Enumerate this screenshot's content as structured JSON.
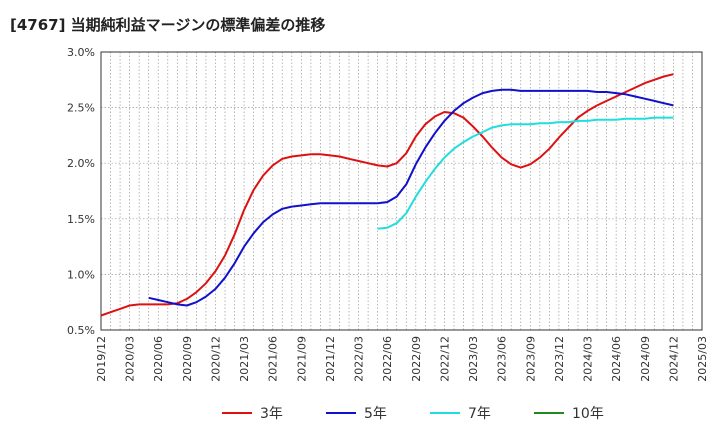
{
  "chart_data": {
    "type": "line",
    "title": "[4767]  当期純利益マージンの標準偏差の推移",
    "xlabel": "",
    "ylabel": "",
    "ylim": [
      0.5,
      3.0
    ],
    "yticks": [
      0.5,
      1.0,
      1.5,
      2.0,
      2.5,
      3.0
    ],
    "ytick_labels": [
      "0.5%",
      "1.0%",
      "1.5%",
      "2.0%",
      "2.5%",
      "3.0%"
    ],
    "xticks": [
      "2019/12",
      "2020/03",
      "2020/06",
      "2020/09",
      "2020/12",
      "2021/03",
      "2021/06",
      "2021/09",
      "2021/12",
      "2022/03",
      "2022/06",
      "2022/09",
      "2022/12",
      "2023/03",
      "2023/06",
      "2023/09",
      "2023/12",
      "2024/03",
      "2024/06",
      "2024/09",
      "2024/12",
      "2025/03"
    ],
    "grid": true,
    "legend_position": "bottom",
    "series": [
      {
        "name": "3年",
        "color": "#dd1111",
        "points": [
          [
            "2019/12",
            0.63
          ],
          [
            "2020/01",
            0.66
          ],
          [
            "2020/02",
            0.69
          ],
          [
            "2020/03",
            0.72
          ],
          [
            "2020/04",
            0.73
          ],
          [
            "2020/05",
            0.73
          ],
          [
            "2020/06",
            0.73
          ],
          [
            "2020/07",
            0.73
          ],
          [
            "2020/08",
            0.74
          ],
          [
            "2020/09",
            0.78
          ],
          [
            "2020/10",
            0.84
          ],
          [
            "2020/11",
            0.92
          ],
          [
            "2020/12",
            1.03
          ],
          [
            "2021/01",
            1.17
          ],
          [
            "2021/02",
            1.36
          ],
          [
            "2021/03",
            1.58
          ],
          [
            "2021/04",
            1.76
          ],
          [
            "2021/05",
            1.89
          ],
          [
            "2021/06",
            1.98
          ],
          [
            "2021/07",
            2.04
          ],
          [
            "2021/08",
            2.06
          ],
          [
            "2021/09",
            2.07
          ],
          [
            "2021/10",
            2.08
          ],
          [
            "2021/11",
            2.08
          ],
          [
            "2021/12",
            2.07
          ],
          [
            "2022/01",
            2.06
          ],
          [
            "2022/02",
            2.04
          ],
          [
            "2022/03",
            2.02
          ],
          [
            "2022/04",
            2.0
          ],
          [
            "2022/05",
            1.98
          ],
          [
            "2022/06",
            1.97
          ],
          [
            "2022/07",
            2.0
          ],
          [
            "2022/08",
            2.09
          ],
          [
            "2022/09",
            2.24
          ],
          [
            "2022/10",
            2.35
          ],
          [
            "2022/11",
            2.42
          ],
          [
            "2022/12",
            2.46
          ],
          [
            "2023/01",
            2.45
          ],
          [
            "2023/02",
            2.41
          ],
          [
            "2023/03",
            2.33
          ],
          [
            "2023/04",
            2.24
          ],
          [
            "2023/05",
            2.14
          ],
          [
            "2023/06",
            2.05
          ],
          [
            "2023/07",
            1.99
          ],
          [
            "2023/08",
            1.96
          ],
          [
            "2023/09",
            1.99
          ],
          [
            "2023/10",
            2.05
          ],
          [
            "2023/11",
            2.13
          ],
          [
            "2023/12",
            2.23
          ],
          [
            "2024/01",
            2.32
          ],
          [
            "2024/02",
            2.41
          ],
          [
            "2024/03",
            2.47
          ],
          [
            "2024/04",
            2.52
          ],
          [
            "2024/05",
            2.56
          ],
          [
            "2024/06",
            2.6
          ],
          [
            "2024/07",
            2.64
          ],
          [
            "2024/08",
            2.68
          ],
          [
            "2024/09",
            2.72
          ],
          [
            "2024/10",
            2.75
          ],
          [
            "2024/11",
            2.78
          ],
          [
            "2024/12",
            2.8
          ]
        ]
      },
      {
        "name": "5年",
        "color": "#1111cc",
        "points": [
          [
            "2020/05",
            0.79
          ],
          [
            "2020/06",
            0.77
          ],
          [
            "2020/07",
            0.75
          ],
          [
            "2020/08",
            0.73
          ],
          [
            "2020/09",
            0.72
          ],
          [
            "2020/10",
            0.75
          ],
          [
            "2020/11",
            0.8
          ],
          [
            "2020/12",
            0.87
          ],
          [
            "2021/01",
            0.97
          ],
          [
            "2021/02",
            1.1
          ],
          [
            "2021/03",
            1.25
          ],
          [
            "2021/04",
            1.37
          ],
          [
            "2021/05",
            1.47
          ],
          [
            "2021/06",
            1.54
          ],
          [
            "2021/07",
            1.59
          ],
          [
            "2021/08",
            1.61
          ],
          [
            "2021/09",
            1.62
          ],
          [
            "2021/10",
            1.63
          ],
          [
            "2021/11",
            1.64
          ],
          [
            "2021/12",
            1.64
          ],
          [
            "2022/01",
            1.64
          ],
          [
            "2022/02",
            1.64
          ],
          [
            "2022/03",
            1.64
          ],
          [
            "2022/04",
            1.64
          ],
          [
            "2022/05",
            1.64
          ],
          [
            "2022/06",
            1.65
          ],
          [
            "2022/07",
            1.7
          ],
          [
            "2022/08",
            1.81
          ],
          [
            "2022/09",
            1.99
          ],
          [
            "2022/10",
            2.14
          ],
          [
            "2022/11",
            2.27
          ],
          [
            "2022/12",
            2.38
          ],
          [
            "2023/01",
            2.47
          ],
          [
            "2023/02",
            2.54
          ],
          [
            "2023/03",
            2.59
          ],
          [
            "2023/04",
            2.63
          ],
          [
            "2023/05",
            2.65
          ],
          [
            "2023/06",
            2.66
          ],
          [
            "2023/07",
            2.66
          ],
          [
            "2023/08",
            2.65
          ],
          [
            "2023/09",
            2.65
          ],
          [
            "2023/10",
            2.65
          ],
          [
            "2023/11",
            2.65
          ],
          [
            "2023/12",
            2.65
          ],
          [
            "2024/01",
            2.65
          ],
          [
            "2024/02",
            2.65
          ],
          [
            "2024/03",
            2.65
          ],
          [
            "2024/04",
            2.64
          ],
          [
            "2024/05",
            2.64
          ],
          [
            "2024/06",
            2.63
          ],
          [
            "2024/07",
            2.62
          ],
          [
            "2024/08",
            2.6
          ],
          [
            "2024/09",
            2.58
          ],
          [
            "2024/10",
            2.56
          ],
          [
            "2024/11",
            2.54
          ],
          [
            "2024/12",
            2.52
          ]
        ]
      },
      {
        "name": "7年",
        "color": "#22dddd",
        "points": [
          [
            "2022/05",
            1.41
          ],
          [
            "2022/06",
            1.42
          ],
          [
            "2022/07",
            1.46
          ],
          [
            "2022/08",
            1.55
          ],
          [
            "2022/09",
            1.7
          ],
          [
            "2022/10",
            1.83
          ],
          [
            "2022/11",
            1.95
          ],
          [
            "2022/12",
            2.05
          ],
          [
            "2023/01",
            2.13
          ],
          [
            "2023/02",
            2.19
          ],
          [
            "2023/03",
            2.24
          ],
          [
            "2023/04",
            2.28
          ],
          [
            "2023/05",
            2.32
          ],
          [
            "2023/06",
            2.34
          ],
          [
            "2023/07",
            2.35
          ],
          [
            "2023/08",
            2.35
          ],
          [
            "2023/09",
            2.35
          ],
          [
            "2023/10",
            2.36
          ],
          [
            "2023/11",
            2.36
          ],
          [
            "2023/12",
            2.37
          ],
          [
            "2024/01",
            2.37
          ],
          [
            "2024/02",
            2.38
          ],
          [
            "2024/03",
            2.38
          ],
          [
            "2024/04",
            2.39
          ],
          [
            "2024/05",
            2.39
          ],
          [
            "2024/06",
            2.39
          ],
          [
            "2024/07",
            2.4
          ],
          [
            "2024/08",
            2.4
          ],
          [
            "2024/09",
            2.4
          ],
          [
            "2024/10",
            2.41
          ],
          [
            "2024/11",
            2.41
          ],
          [
            "2024/12",
            2.41
          ]
        ]
      },
      {
        "name": "10年",
        "color": "#228822",
        "points": []
      }
    ]
  }
}
